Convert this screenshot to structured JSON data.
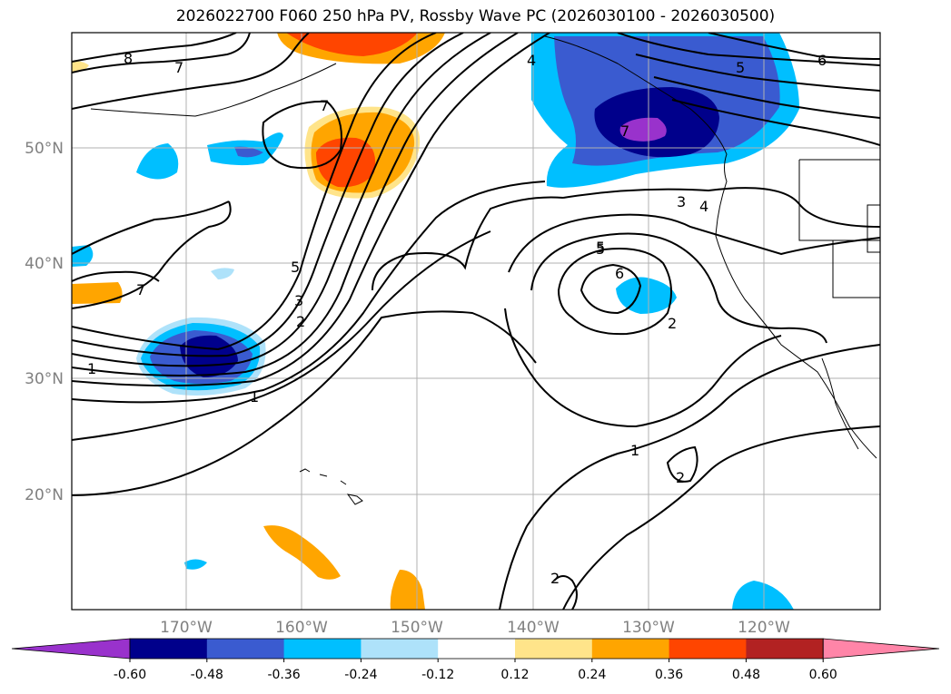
{
  "title": "2026022700 F060 250 hPa PV, Rossby Wave PC (2026030100 - 2026030500)",
  "lat_labels": [
    "50°N",
    "40°N",
    "30°N",
    "20°N"
  ],
  "lon_labels": [
    "170°W",
    "160°W",
    "150°W",
    "140°W",
    "130°W",
    "120°W"
  ],
  "contour_labels": [
    "8",
    "7",
    "7",
    "7",
    "5",
    "3",
    "2",
    "1",
    "1",
    "4",
    "5",
    "6",
    "5",
    "3",
    "4",
    "5",
    "6",
    "7",
    "2",
    "1",
    "2",
    "2"
  ],
  "colorbar": {
    "ticks": [
      "-0.60",
      "-0.48",
      "-0.36",
      "-0.24",
      "-0.12",
      "0.12",
      "0.24",
      "0.36",
      "0.48",
      "0.60"
    ],
    "colors": [
      "#9932cc",
      "#00008b",
      "#3a5bd0",
      "#00bfff",
      "#aee2fa",
      "#ffffff",
      "#ffe48a",
      "#ffa500",
      "#ff4500",
      "#b22222",
      "#ff85a8"
    ]
  }
}
